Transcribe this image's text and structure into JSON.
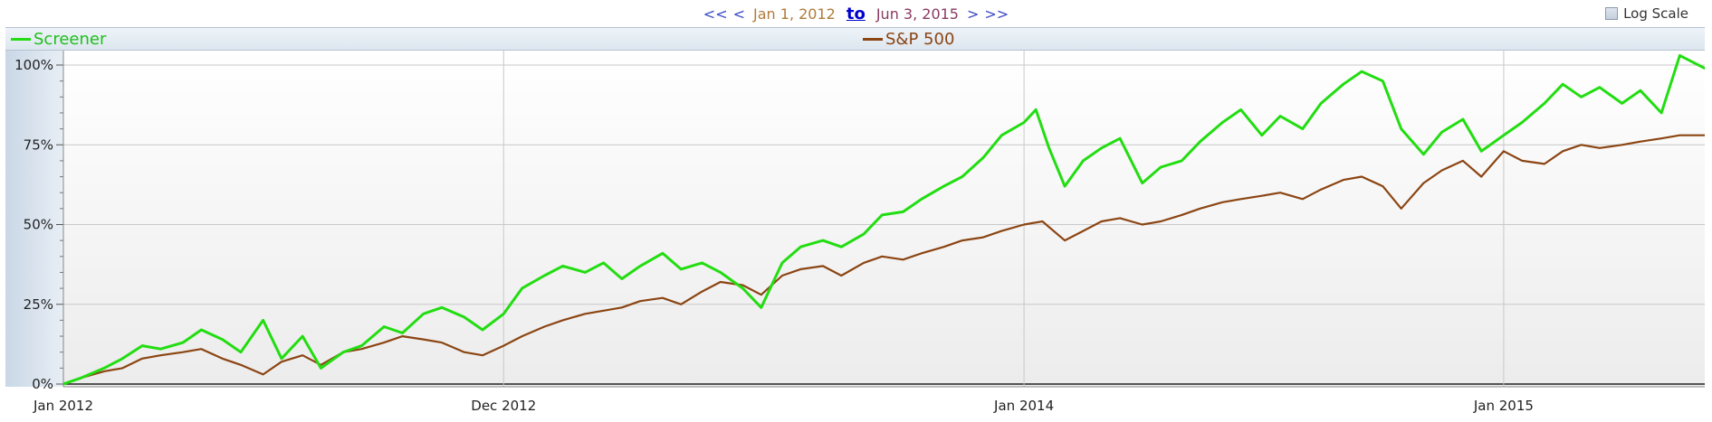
{
  "navigation": {
    "first": "<<",
    "prev": "<",
    "start_date": "Jan 1, 2012",
    "to": "to",
    "end_date": "Jun 3, 2015",
    "next": ">",
    "last": ">>"
  },
  "log_scale": {
    "label": "Log Scale",
    "checked": false
  },
  "chart_data": {
    "type": "line",
    "title": "",
    "xlabel": "",
    "ylabel": "",
    "x_range": [
      "2012-01-01",
      "2015-06-03"
    ],
    "ylim": [
      0,
      100
    ],
    "y_ticks": [
      0,
      25,
      50,
      75,
      100
    ],
    "y_tick_labels": [
      "0%",
      "25%",
      "50%",
      "75%",
      "100%"
    ],
    "x_ticks": [
      "2012-01-01",
      "2012-12-01",
      "2014-01-01",
      "2015-01-01"
    ],
    "x_tick_labels": [
      "Jan 2012",
      "Dec 2012",
      "Jan 2014",
      "Jan 2015"
    ],
    "grid": true,
    "legend_placement": "top",
    "series": [
      {
        "name": "Screener",
        "color": "#22dd11",
        "points": [
          [
            "2012-01-01",
            0
          ],
          [
            "2012-01-15",
            2
          ],
          [
            "2012-02-01",
            5
          ],
          [
            "2012-02-15",
            8
          ],
          [
            "2012-03-01",
            12
          ],
          [
            "2012-03-15",
            11
          ],
          [
            "2012-04-01",
            13
          ],
          [
            "2012-04-15",
            17
          ],
          [
            "2012-05-01",
            14
          ],
          [
            "2012-05-15",
            10
          ],
          [
            "2012-06-01",
            20
          ],
          [
            "2012-06-15",
            8
          ],
          [
            "2012-07-01",
            15
          ],
          [
            "2012-07-15",
            5
          ],
          [
            "2012-08-01",
            10
          ],
          [
            "2012-08-15",
            12
          ],
          [
            "2012-09-01",
            18
          ],
          [
            "2012-09-15",
            16
          ],
          [
            "2012-10-01",
            22
          ],
          [
            "2012-10-15",
            24
          ],
          [
            "2012-11-01",
            21
          ],
          [
            "2012-11-15",
            17
          ],
          [
            "2012-12-01",
            22
          ],
          [
            "2012-12-15",
            30
          ],
          [
            "2013-01-01",
            34
          ],
          [
            "2013-01-15",
            37
          ],
          [
            "2013-02-01",
            35
          ],
          [
            "2013-02-15",
            38
          ],
          [
            "2013-03-01",
            33
          ],
          [
            "2013-03-15",
            37
          ],
          [
            "2013-04-01",
            41
          ],
          [
            "2013-04-15",
            36
          ],
          [
            "2013-05-01",
            38
          ],
          [
            "2013-05-15",
            35
          ],
          [
            "2013-06-01",
            30
          ],
          [
            "2013-06-15",
            24
          ],
          [
            "2013-07-01",
            38
          ],
          [
            "2013-07-15",
            43
          ],
          [
            "2013-08-01",
            45
          ],
          [
            "2013-08-15",
            43
          ],
          [
            "2013-09-01",
            47
          ],
          [
            "2013-09-15",
            53
          ],
          [
            "2013-10-01",
            54
          ],
          [
            "2013-10-15",
            58
          ],
          [
            "2013-11-01",
            62
          ],
          [
            "2013-11-15",
            65
          ],
          [
            "2013-12-01",
            71
          ],
          [
            "2013-12-15",
            78
          ],
          [
            "2014-01-01",
            82
          ],
          [
            "2014-01-10",
            86
          ],
          [
            "2014-01-20",
            74
          ],
          [
            "2014-02-01",
            62
          ],
          [
            "2014-02-15",
            70
          ],
          [
            "2014-03-01",
            74
          ],
          [
            "2014-03-15",
            77
          ],
          [
            "2014-04-01",
            63
          ],
          [
            "2014-04-15",
            68
          ],
          [
            "2014-05-01",
            70
          ],
          [
            "2014-05-15",
            76
          ],
          [
            "2014-06-01",
            82
          ],
          [
            "2014-06-15",
            86
          ],
          [
            "2014-07-01",
            78
          ],
          [
            "2014-07-15",
            84
          ],
          [
            "2014-08-01",
            80
          ],
          [
            "2014-08-15",
            88
          ],
          [
            "2014-09-01",
            94
          ],
          [
            "2014-09-15",
            98
          ],
          [
            "2014-10-01",
            95
          ],
          [
            "2014-10-15",
            80
          ],
          [
            "2014-11-01",
            72
          ],
          [
            "2014-11-15",
            79
          ],
          [
            "2014-12-01",
            83
          ],
          [
            "2014-12-15",
            73
          ],
          [
            "2015-01-01",
            78
          ],
          [
            "2015-01-15",
            82
          ],
          [
            "2015-02-01",
            88
          ],
          [
            "2015-02-15",
            94
          ],
          [
            "2015-03-01",
            90
          ],
          [
            "2015-03-15",
            93
          ],
          [
            "2015-04-01",
            88
          ],
          [
            "2015-04-15",
            92
          ],
          [
            "2015-05-01",
            85
          ],
          [
            "2015-05-15",
            103
          ],
          [
            "2015-06-03",
            99
          ]
        ]
      },
      {
        "name": "S&P 500",
        "color": "#8b4513",
        "points": [
          [
            "2012-01-01",
            0
          ],
          [
            "2012-01-15",
            2
          ],
          [
            "2012-02-01",
            4
          ],
          [
            "2012-02-15",
            5
          ],
          [
            "2012-03-01",
            8
          ],
          [
            "2012-03-15",
            9
          ],
          [
            "2012-04-01",
            10
          ],
          [
            "2012-04-15",
            11
          ],
          [
            "2012-05-01",
            8
          ],
          [
            "2012-05-15",
            6
          ],
          [
            "2012-06-01",
            3
          ],
          [
            "2012-06-15",
            7
          ],
          [
            "2012-07-01",
            9
          ],
          [
            "2012-07-15",
            6
          ],
          [
            "2012-08-01",
            10
          ],
          [
            "2012-08-15",
            11
          ],
          [
            "2012-09-01",
            13
          ],
          [
            "2012-09-15",
            15
          ],
          [
            "2012-10-01",
            14
          ],
          [
            "2012-10-15",
            13
          ],
          [
            "2012-11-01",
            10
          ],
          [
            "2012-11-15",
            9
          ],
          [
            "2012-12-01",
            12
          ],
          [
            "2012-12-15",
            15
          ],
          [
            "2013-01-01",
            18
          ],
          [
            "2013-01-15",
            20
          ],
          [
            "2013-02-01",
            22
          ],
          [
            "2013-02-15",
            23
          ],
          [
            "2013-03-01",
            24
          ],
          [
            "2013-03-15",
            26
          ],
          [
            "2013-04-01",
            27
          ],
          [
            "2013-04-15",
            25
          ],
          [
            "2013-05-01",
            29
          ],
          [
            "2013-05-15",
            32
          ],
          [
            "2013-06-01",
            31
          ],
          [
            "2013-06-15",
            28
          ],
          [
            "2013-07-01",
            34
          ],
          [
            "2013-07-15",
            36
          ],
          [
            "2013-08-01",
            37
          ],
          [
            "2013-08-15",
            34
          ],
          [
            "2013-09-01",
            38
          ],
          [
            "2013-09-15",
            40
          ],
          [
            "2013-10-01",
            39
          ],
          [
            "2013-10-15",
            41
          ],
          [
            "2013-11-01",
            43
          ],
          [
            "2013-11-15",
            45
          ],
          [
            "2013-12-01",
            46
          ],
          [
            "2013-12-15",
            48
          ],
          [
            "2014-01-01",
            50
          ],
          [
            "2014-01-15",
            51
          ],
          [
            "2014-02-01",
            45
          ],
          [
            "2014-02-15",
            48
          ],
          [
            "2014-03-01",
            51
          ],
          [
            "2014-03-15",
            52
          ],
          [
            "2014-04-01",
            50
          ],
          [
            "2014-04-15",
            51
          ],
          [
            "2014-05-01",
            53
          ],
          [
            "2014-05-15",
            55
          ],
          [
            "2014-06-01",
            57
          ],
          [
            "2014-06-15",
            58
          ],
          [
            "2014-07-01",
            59
          ],
          [
            "2014-07-15",
            60
          ],
          [
            "2014-08-01",
            58
          ],
          [
            "2014-08-15",
            61
          ],
          [
            "2014-09-01",
            64
          ],
          [
            "2014-09-15",
            65
          ],
          [
            "2014-10-01",
            62
          ],
          [
            "2014-10-15",
            55
          ],
          [
            "2014-11-01",
            63
          ],
          [
            "2014-11-15",
            67
          ],
          [
            "2014-12-01",
            70
          ],
          [
            "2014-12-15",
            65
          ],
          [
            "2015-01-01",
            73
          ],
          [
            "2015-01-15",
            70
          ],
          [
            "2015-02-01",
            69
          ],
          [
            "2015-02-15",
            73
          ],
          [
            "2015-03-01",
            75
          ],
          [
            "2015-03-15",
            74
          ],
          [
            "2015-04-01",
            75
          ],
          [
            "2015-04-15",
            76
          ],
          [
            "2015-05-01",
            77
          ],
          [
            "2015-05-15",
            78
          ],
          [
            "2015-06-03",
            78
          ]
        ]
      }
    ]
  }
}
